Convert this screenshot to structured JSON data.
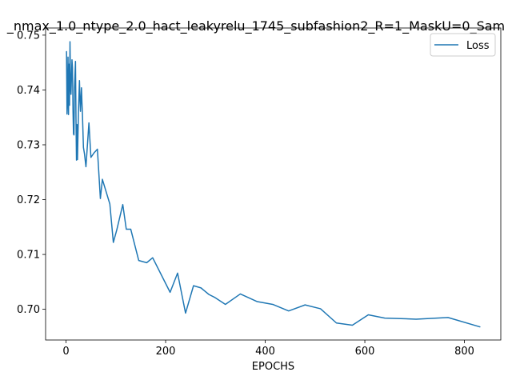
{
  "chart_data": {
    "type": "line",
    "title": "_nmax_1.0_ntype_2.0_hact_leakyrelu_1745_subfashion2_R=1_MaskU=0_Sam",
    "xlabel": "EPOCHS",
    "ylabel": "",
    "xlim": [
      -41,
      873
    ],
    "ylim": [
      0.6944,
      0.7513
    ],
    "xticks": [
      0,
      200,
      400,
      600,
      800
    ],
    "yticks": [
      0.7,
      0.71,
      0.72,
      0.73,
      0.74,
      0.75
    ],
    "ytick_labels": [
      "0.70",
      "0.71",
      "0.72",
      "0.73",
      "0.74",
      "0.75"
    ],
    "legend_position": "top-right",
    "grid": false,
    "series": [
      {
        "name": "Loss",
        "color": "#1f77b4",
        "x": [
          1,
          2,
          3,
          4,
          5,
          6,
          7,
          8,
          9,
          10,
          12,
          13,
          14,
          15,
          16,
          17,
          19,
          20,
          21,
          22,
          23,
          25,
          27,
          28,
          29,
          31,
          32,
          33,
          35,
          37,
          40,
          46,
          50,
          56,
          63,
          69,
          73,
          88,
          95,
          102,
          114,
          121,
          130,
          146,
          162,
          174,
          209,
          224,
          240,
          256,
          271,
          287,
          298,
          320,
          350,
          384,
          415,
          447,
          480,
          511,
          543,
          575,
          607,
          640,
          703,
          767,
          831
        ],
        "y": [
          0.747,
          0.7356,
          0.738,
          0.746,
          0.7355,
          0.7447,
          0.7372,
          0.7488,
          0.741,
          0.7392,
          0.7455,
          0.744,
          0.7363,
          0.732,
          0.7318,
          0.7403,
          0.7452,
          0.735,
          0.7272,
          0.7337,
          0.7273,
          0.736,
          0.7417,
          0.7384,
          0.7361,
          0.7404,
          0.7377,
          0.7355,
          0.7295,
          0.7284,
          0.726,
          0.734,
          0.7277,
          0.7285,
          0.7292,
          0.7202,
          0.7237,
          0.7192,
          0.7122,
          0.7145,
          0.7191,
          0.7146,
          0.7146,
          0.7089,
          0.7085,
          0.7094,
          0.7031,
          0.7066,
          0.6993,
          0.7043,
          0.7039,
          0.7027,
          0.7022,
          0.7009,
          0.7028,
          0.7014,
          0.7009,
          0.6997,
          0.7008,
          0.7001,
          0.6975,
          0.6971,
          0.699,
          0.6984,
          0.6982,
          0.6985,
          0.6968
        ]
      }
    ]
  }
}
